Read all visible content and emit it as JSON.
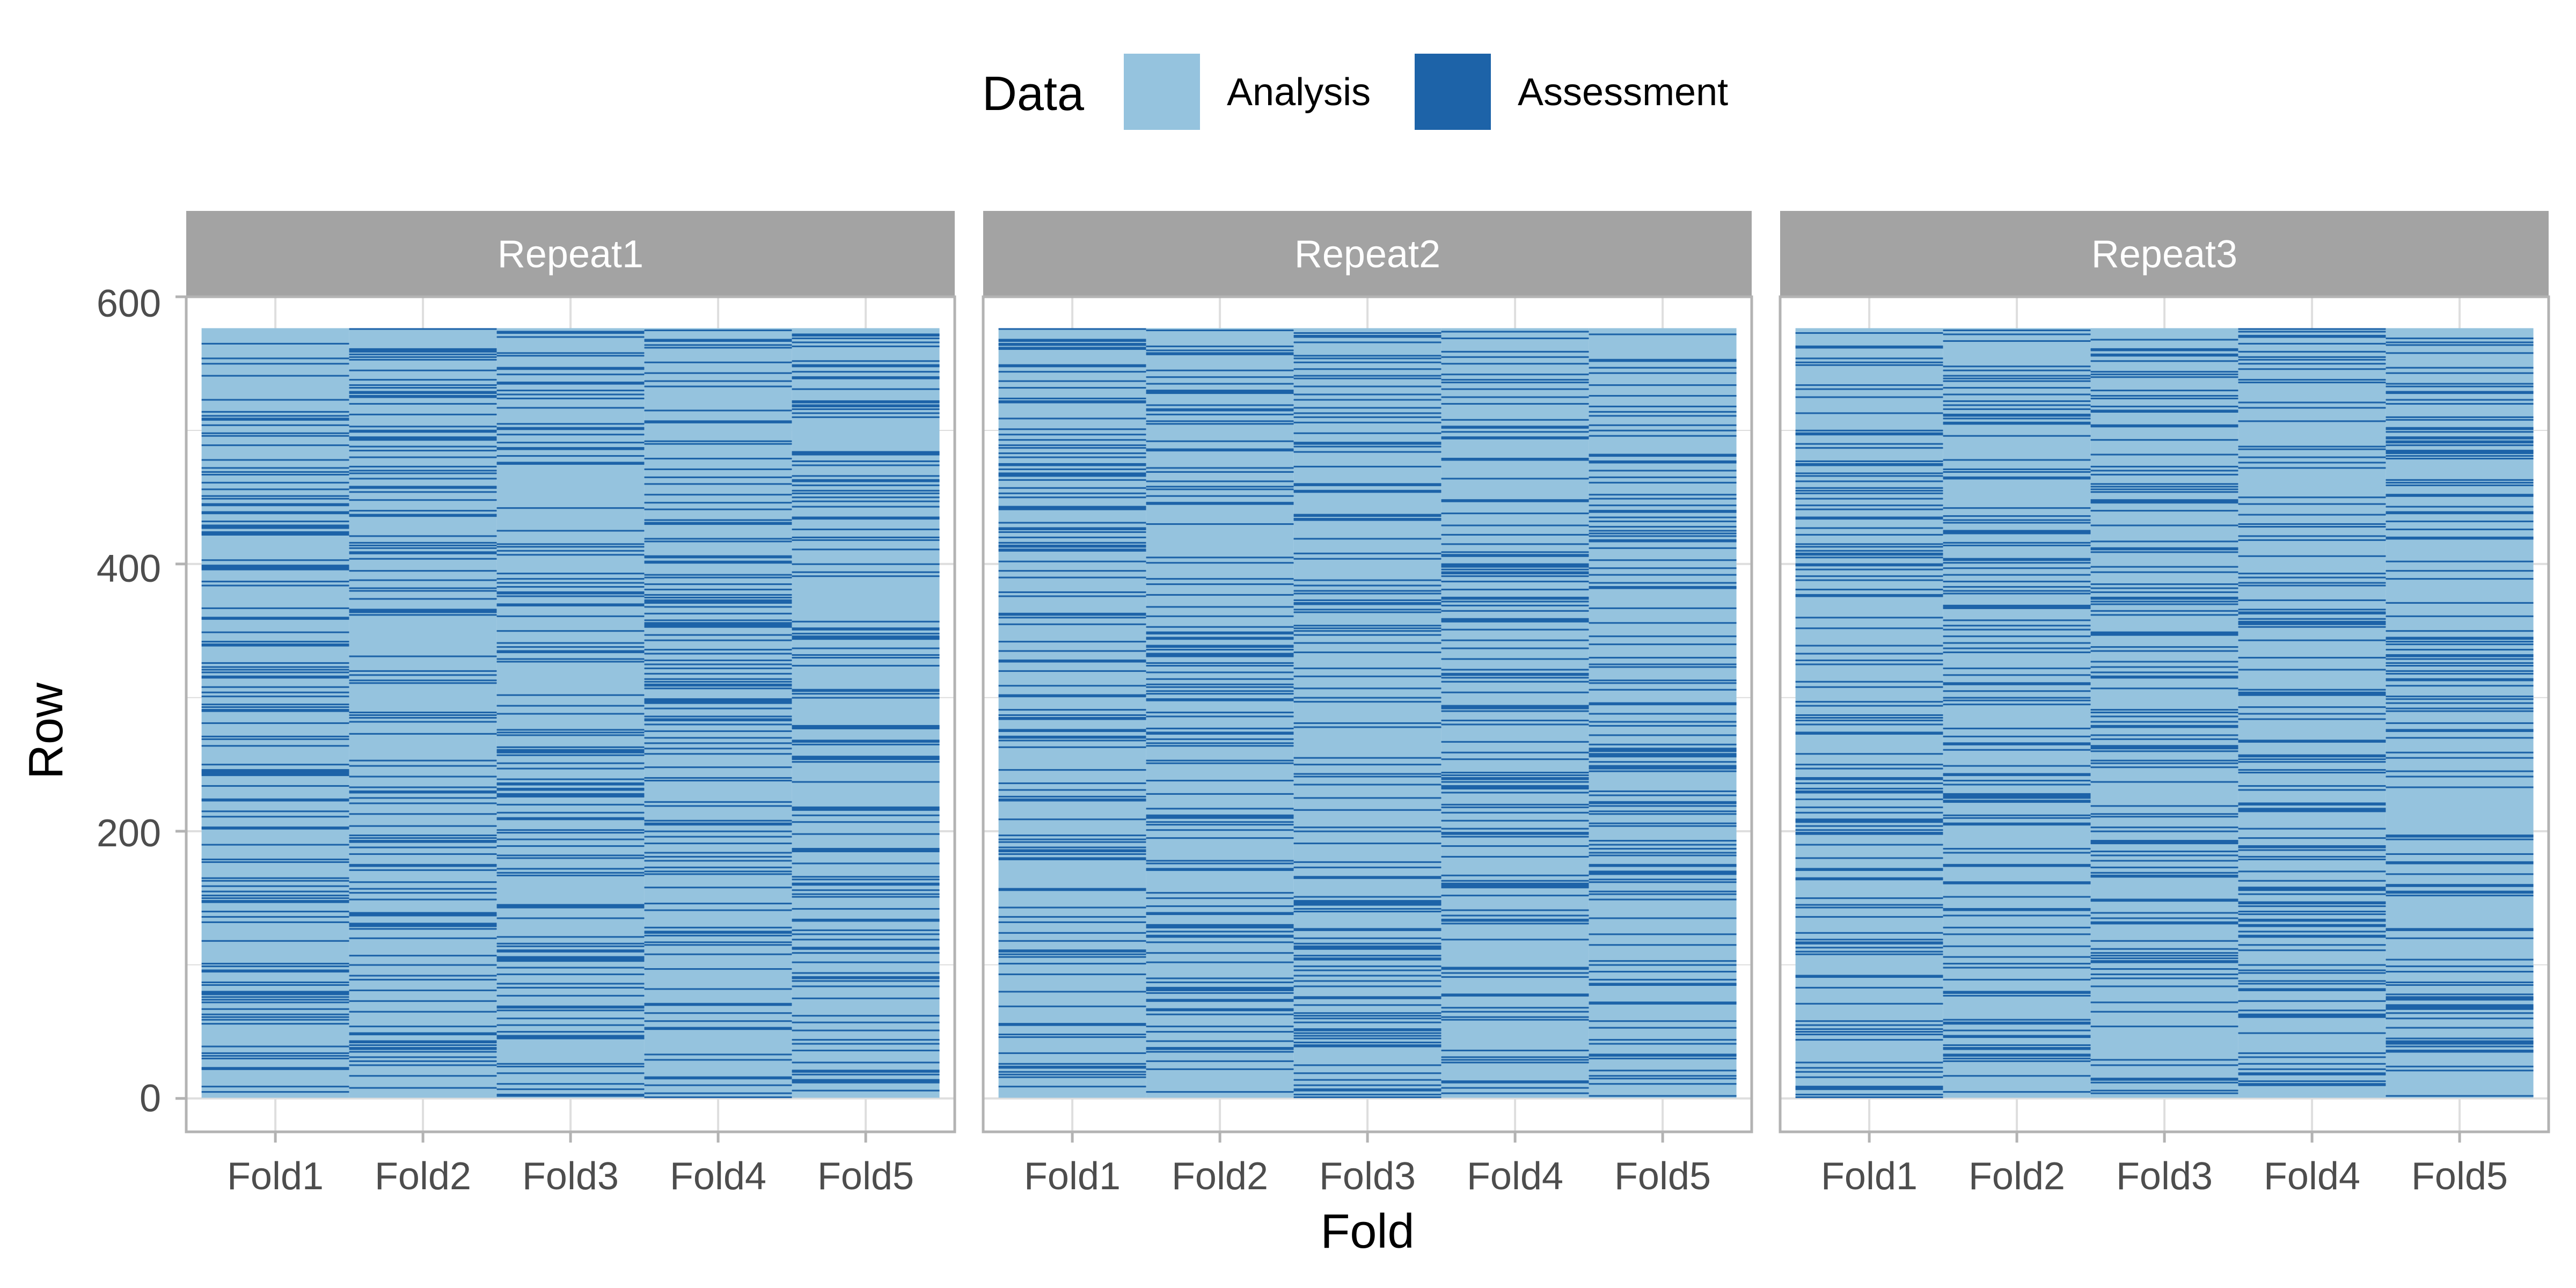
{
  "chart_data": {
    "type": "heatmap",
    "title": "",
    "xlabel": "Fold",
    "ylabel": "Row",
    "legend": {
      "title": "Data",
      "position": "top",
      "entries": [
        {
          "name": "Analysis",
          "color": "#95c3de"
        },
        {
          "name": "Assessment",
          "color": "#1d63a8"
        }
      ]
    },
    "facets": [
      "Repeat1",
      "Repeat2",
      "Repeat3"
    ],
    "categories": [
      "Fold1",
      "Fold2",
      "Fold3",
      "Fold4",
      "Fold5"
    ],
    "yticks": [
      "0",
      "200",
      "400",
      "600"
    ],
    "ylim": [
      -25,
      600
    ],
    "n_rows": 576,
    "folds_per_repeat": 5,
    "grid": true,
    "colors": {
      "analysis": "#95c3de",
      "assessment": "#1d63a8",
      "strip_background": "#a3a3a3",
      "grid": "#dedede",
      "panel_border": "#b3b3b3"
    }
  }
}
